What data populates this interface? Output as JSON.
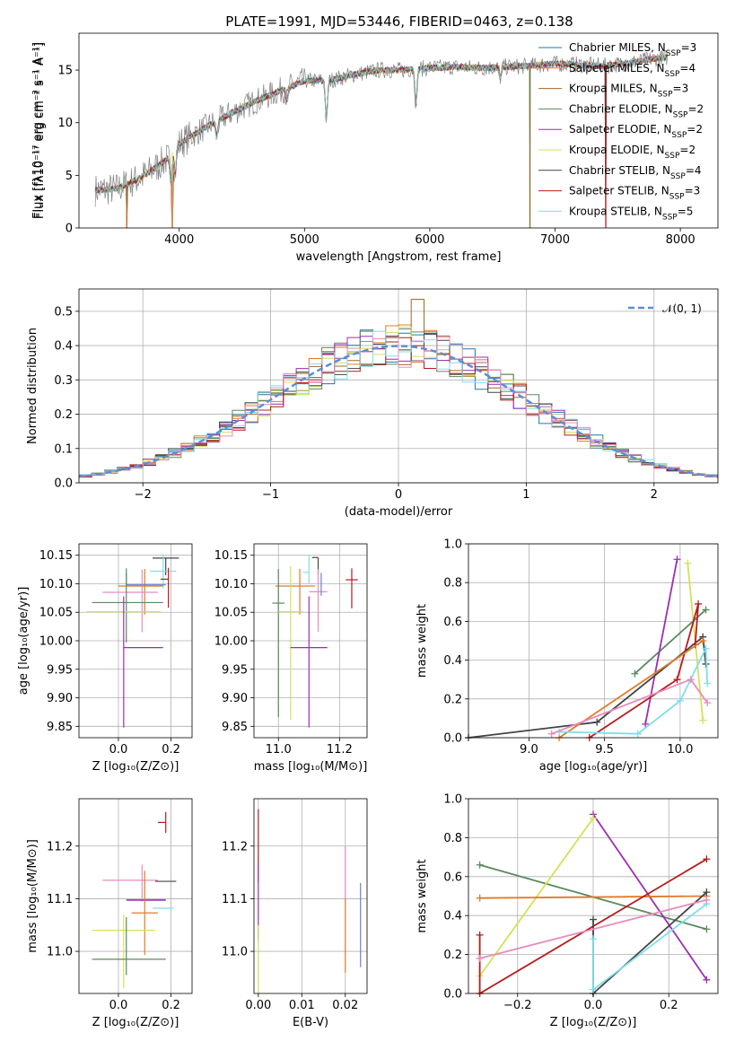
{
  "colors": [
    "#1f77b4",
    "#e07b2a",
    "#a0692a",
    "#5a8a5e",
    "#9b2fae",
    "#d4e157",
    "#444444",
    "#b71c1c",
    "#80deea",
    "#e98bbf",
    "#6b7fd0",
    "#d0e07a"
  ],
  "chart_data": [
    {
      "id": "spectrum",
      "type": "line",
      "title": "PLATE=1991, MJD=53446, FIBERID=0463, z=0.138",
      "xlabel": "wavelength [Angstrom, rest frame]",
      "ylabel": "Flux [fλ10⁻¹⁷ erg cm⁻² s⁻¹ A⁻¹]",
      "xlim": [
        3200,
        8300
      ],
      "ylim": [
        0,
        18.5
      ],
      "xticks": [
        4000,
        5000,
        6000,
        7000,
        8000
      ],
      "yticks": [
        0,
        5,
        10,
        15
      ],
      "x_range": [
        3330,
        7900
      ],
      "continuum": {
        "x": [
          3330,
          3500,
          3700,
          3900,
          4000,
          4200,
          4400,
          4600,
          4800,
          5000,
          5200,
          5400,
          5600,
          5800,
          6000,
          6200,
          6400,
          6600,
          6800,
          7000,
          7200,
          7400,
          7600,
          7800,
          7900
        ],
        "y": [
          3.6,
          3.7,
          4.8,
          6.5,
          8.0,
          9.5,
          10.8,
          12.0,
          13.0,
          14.0,
          14.0,
          14.6,
          15.0,
          15.0,
          15.2,
          15.3,
          15.2,
          15.3,
          15.4,
          15.6,
          15.5,
          15.4,
          15.7,
          16.1,
          16.2
        ]
      },
      "dips": [
        {
          "x": 3933,
          "d": 2.5
        },
        {
          "x": 3968,
          "d": 2.2
        },
        {
          "x": 4300,
          "d": 1.5
        },
        {
          "x": 4861,
          "d": 1.2
        },
        {
          "x": 5175,
          "d": 3.8
        },
        {
          "x": 5890,
          "d": 3.3
        },
        {
          "x": 6563,
          "d": 1.0
        }
      ],
      "gaps": [
        3580,
        3945,
        6800,
        7405
      ],
      "series": [
        {
          "name": "Chabrier MILES, N$_{SSP}$=3"
        },
        {
          "name": "Salpeter MILES, N$_{SSP}$=4"
        },
        {
          "name": "Kroupa MILES, N$_{SSP}$=3"
        },
        {
          "name": "Chabrier ELODIE, N$_{SSP}$=2"
        },
        {
          "name": "Salpeter ELODIE, N$_{SSP}$=2"
        },
        {
          "name": "Kroupa ELODIE, N$_{SSP}$=2"
        },
        {
          "name": "Chabrier STELIB, N$_{SSP}$=4"
        },
        {
          "name": "Salpeter STELIB, N$_{SSP}$=3"
        },
        {
          "name": "Kroupa STELIB, N$_{SSP}$=5"
        }
      ],
      "legend": "top-right",
      "grid": false
    },
    {
      "id": "residuals",
      "type": "histogram",
      "xlabel": "(data-model)/error",
      "ylabel": "Normed distribution",
      "xlim": [
        -2.5,
        2.5
      ],
      "ylim": [
        0,
        0.565
      ],
      "xticks": [
        -2,
        -1,
        0,
        1,
        2
      ],
      "yticks": [
        0.0,
        0.1,
        0.2,
        0.3,
        0.4,
        0.5
      ],
      "bin_width": 0.1,
      "reference_curve": "𝒩(0, 1)",
      "legend": "top-right",
      "grid": true
    },
    {
      "id": "age_vs_Z",
      "type": "errorbar",
      "xlabel": "Z [log₁₀(Z/Z⊙)]",
      "ylabel": "age  [log₁₀(age/yr)]",
      "xlim": [
        -0.15,
        0.28
      ],
      "ylim": [
        9.83,
        10.17
      ],
      "xticks": [
        0.0,
        0.2
      ],
      "yticks": [
        9.85,
        9.9,
        9.95,
        10.0,
        10.05,
        10.1,
        10.15
      ],
      "points": [
        {
          "x": 0.1,
          "y": 10.096,
          "xerr": [
            0.1,
            0.07
          ],
          "yerr": [
            0.05,
            0.03
          ],
          "c": 1
        },
        {
          "x": 0.18,
          "y": 10.145,
          "xerr": [
            0.05,
            0.05
          ],
          "yerr": [
            0.03,
            0.0
          ],
          "c": 6
        },
        {
          "x": 0.17,
          "y": 10.122,
          "xerr": [
            0.05,
            0.05
          ],
          "yerr": [
            0.03,
            0.03
          ],
          "c": 8
        },
        {
          "x": 0.09,
          "y": 10.085,
          "xerr": [
            0.15,
            0.06
          ],
          "yerr": [
            0.07,
            0.04
          ],
          "c": 9
        },
        {
          "x": 0.19,
          "y": 10.108,
          "xerr": [
            0.03,
            0.0
          ],
          "yerr": [
            0.05,
            0.02
          ],
          "c": 7
        },
        {
          "x": 0.03,
          "y": 10.098,
          "xerr": [
            0.0,
            0.15
          ],
          "yerr": [
            0.0,
            0.02
          ],
          "c": 10
        },
        {
          "x": 0.03,
          "y": 10.067,
          "xerr": [
            0.13,
            0.14
          ],
          "yerr": [
            0.07,
            0.06
          ],
          "c": 3
        },
        {
          "x": 0.02,
          "y": 10.051,
          "xerr": [
            0.14,
            0.14
          ],
          "yerr": [
            0.0,
            0.0
          ],
          "c": 5
        },
        {
          "x": 0.02,
          "y": 9.988,
          "xerr": [
            0.0,
            0.15
          ],
          "yerr": [
            0.14,
            0.09
          ],
          "c": 4
        }
      ],
      "grid": true
    },
    {
      "id": "age_vs_mass",
      "type": "errorbar",
      "xlabel": "mass [log₁₀(M/M⊙)]",
      "ylabel": "",
      "xlim": [
        10.92,
        11.29
      ],
      "ylim": [
        9.83,
        10.17
      ],
      "xticks": [
        11.0,
        11.2
      ],
      "yticks": [
        9.85,
        9.9,
        9.95,
        10.0,
        10.05,
        10.1,
        10.15
      ],
      "points": [
        {
          "x": 11.07,
          "y": 10.096,
          "xerr": [
            0.08,
            0.05
          ],
          "yerr": [
            0.05,
            0.03
          ],
          "c": 1
        },
        {
          "x": 11.13,
          "y": 10.146,
          "xerr": [
            0.02,
            0.0
          ],
          "yerr": [
            0.03,
            0.0
          ],
          "c": 6
        },
        {
          "x": 11.1,
          "y": 10.12,
          "xerr": [
            0.02,
            0.0
          ],
          "yerr": [
            0.02,
            0.03
          ],
          "c": 8
        },
        {
          "x": 11.13,
          "y": 10.086,
          "xerr": [
            0.03,
            0.03
          ],
          "yerr": [
            0.07,
            0.04
          ],
          "c": 9
        },
        {
          "x": 11.24,
          "y": 10.107,
          "xerr": [
            0.02,
            0.02
          ],
          "yerr": [
            0.05,
            0.02
          ],
          "c": 7
        },
        {
          "x": 11.14,
          "y": 10.099,
          "xerr": [
            0.0,
            0.0
          ],
          "yerr": [
            0.02,
            0.02
          ],
          "c": 10
        },
        {
          "x": 11.0,
          "y": 10.066,
          "xerr": [
            0.02,
            0.02
          ],
          "yerr": [
            0.2,
            0.06
          ],
          "c": 3
        },
        {
          "x": 11.04,
          "y": 10.051,
          "xerr": [
            0.04,
            0.04
          ],
          "yerr": [
            0.19,
            0.08
          ],
          "c": 5
        },
        {
          "x": 11.1,
          "y": 9.988,
          "xerr": [
            0.06,
            0.06
          ],
          "yerr": [
            0.14,
            0.09
          ],
          "c": 4
        }
      ],
      "grid": true
    },
    {
      "id": "mass_weight_vs_age",
      "type": "line",
      "xlabel": "age  [log₁₀(age/yr)]",
      "ylabel": "mass weight",
      "xlim": [
        8.6,
        10.25
      ],
      "ylim": [
        0.0,
        1.0
      ],
      "xticks": [
        9.0,
        9.5,
        10.0
      ],
      "yticks": [
        0.0,
        0.2,
        0.4,
        0.6,
        0.8,
        1.0
      ],
      "series": [
        {
          "c": 3,
          "x": [
            9.7,
            10.17
          ],
          "y": [
            0.33,
            0.66
          ]
        },
        {
          "c": 4,
          "x": [
            9.77,
            9.98
          ],
          "y": [
            0.07,
            0.92
          ]
        },
        {
          "c": 5,
          "x": [
            10.05,
            10.15
          ],
          "y": [
            0.9,
            0.09
          ]
        },
        {
          "c": 6,
          "x": [
            8.6,
            9.45,
            10.15,
            10.17
          ],
          "y": [
            0.0,
            0.08,
            0.52,
            0.38
          ]
        },
        {
          "c": 7,
          "x": [
            9.4,
            9.98,
            10.12,
            10.1
          ],
          "y": [
            0.0,
            0.3,
            0.69,
            0.48
          ]
        },
        {
          "c": 1,
          "x": [
            9.2,
            10.15
          ],
          "y": [
            0.0,
            0.5
          ]
        },
        {
          "c": 8,
          "x": [
            9.2,
            9.72,
            10.0,
            10.17,
            10.18
          ],
          "y": [
            0.03,
            0.02,
            0.19,
            0.46,
            0.28
          ]
        },
        {
          "c": 9,
          "x": [
            9.15,
            10.07,
            10.18
          ],
          "y": [
            0.02,
            0.3,
            0.18
          ]
        }
      ],
      "grid": true
    },
    {
      "id": "mass_vs_Z",
      "type": "errorbar",
      "xlabel": "Z [log₁₀(Z/Z⊙)]",
      "ylabel": "mass [log₁₀(M/M⊙)]",
      "xlim": [
        -0.15,
        0.28
      ],
      "ylim": [
        10.92,
        11.29
      ],
      "xticks": [
        0.0,
        0.2
      ],
      "yticks": [
        11.0,
        11.1,
        11.2
      ],
      "points": [
        {
          "x": 0.18,
          "y": 11.245,
          "xerr": [
            0.03,
            0.0
          ],
          "yerr": [
            0.02,
            0.02
          ],
          "c": 7
        },
        {
          "x": 0.17,
          "y": 11.133,
          "xerr": [
            0.03,
            0.05
          ],
          "yerr": [
            0.0,
            0.0
          ],
          "c": 6
        },
        {
          "x": 0.09,
          "y": 11.135,
          "xerr": [
            0.15,
            0.06
          ],
          "yerr": [
            0.04,
            0.03
          ],
          "c": 9
        },
        {
          "x": 0.03,
          "y": 11.098,
          "xerr": [
            0.0,
            0.15
          ],
          "yerr": [
            0.0,
            0.0
          ],
          "c": 10
        },
        {
          "x": 0.03,
          "y": 11.097,
          "xerr": [
            0.0,
            0.15
          ],
          "yerr": [
            0.0,
            0.0
          ],
          "c": 4
        },
        {
          "x": 0.17,
          "y": 11.082,
          "xerr": [
            0.04,
            0.04
          ],
          "yerr": [
            0.0,
            0.0
          ],
          "c": 8
        },
        {
          "x": 0.1,
          "y": 11.073,
          "xerr": [
            0.05,
            0.05
          ],
          "yerr": [
            0.08,
            0.08
          ],
          "c": 1
        },
        {
          "x": 0.02,
          "y": 11.04,
          "xerr": [
            0.12,
            0.12
          ],
          "yerr": [
            0.11,
            0.03
          ],
          "c": 5
        },
        {
          "x": 0.03,
          "y": 10.985,
          "xerr": [
            0.13,
            0.15
          ],
          "yerr": [
            0.03,
            0.08
          ],
          "c": 3
        }
      ],
      "grid": true
    },
    {
      "id": "mass_vs_ebv",
      "type": "errorbar",
      "xlabel": "E(B-V)",
      "ylabel": "",
      "xlim": [
        -0.001,
        0.025
      ],
      "ylim": [
        10.92,
        11.29
      ],
      "xticks": [
        0.0,
        0.01,
        0.02
      ],
      "xticklabels": [
        "0.00",
        "0.01",
        "0.02"
      ],
      "yticks": [
        11.0,
        11.1,
        11.2
      ],
      "points": [
        {
          "x": 0.0,
          "y": 11.2,
          "xerr": [
            0,
            0
          ],
          "yerr": [
            0.07,
            0.07
          ],
          "c": 7
        },
        {
          "x": 0.0,
          "y": 11.09,
          "xerr": [
            0,
            0
          ],
          "yerr": [
            0.07,
            0.08
          ],
          "c": 4
        },
        {
          "x": 0.0,
          "y": 11.0,
          "xerr": [
            0,
            0
          ],
          "yerr": [
            0.08,
            0.05
          ],
          "c": 5
        },
        {
          "x": 0.02,
          "y": 11.14,
          "xerr": [
            0,
            0
          ],
          "yerr": [
            0.04,
            0.06
          ],
          "c": 9
        },
        {
          "x": 0.02,
          "y": 11.03,
          "xerr": [
            0,
            0
          ],
          "yerr": [
            0.07,
            0.07
          ],
          "c": 1
        },
        {
          "x": 0.0235,
          "y": 11.05,
          "xerr": [
            0,
            0
          ],
          "yerr": [
            0.08,
            0.08
          ],
          "c": 10
        }
      ],
      "grid": true
    },
    {
      "id": "mass_weight_vs_Z",
      "type": "line",
      "xlabel": "Z [log₁₀(Z/Z⊙)]",
      "ylabel": "mass weight",
      "xlim": [
        -0.33,
        0.33
      ],
      "ylim": [
        0.0,
        1.0
      ],
      "xticks": [
        -0.2,
        0.0,
        0.2
      ],
      "xticklabels": [
        "−0.2",
        "0.0",
        "0.2"
      ],
      "yticks": [
        0.0,
        0.2,
        0.4,
        0.6,
        0.8,
        1.0
      ],
      "series": [
        {
          "c": 3,
          "x": [
            -0.3,
            0.3
          ],
          "y": [
            0.66,
            0.33
          ]
        },
        {
          "c": 4,
          "x": [
            0.0,
            0.3
          ],
          "y": [
            0.92,
            0.07
          ]
        },
        {
          "c": 5,
          "x": [
            -0.3,
            0.0
          ],
          "y": [
            0.09,
            0.9
          ]
        },
        {
          "c": 1,
          "x": [
            -0.3,
            0.3
          ],
          "y": [
            0.49,
            0.5
          ]
        },
        {
          "c": 7,
          "x": [
            -0.3,
            -0.3,
            0.3
          ],
          "y": [
            0.3,
            0.0,
            0.69
          ]
        },
        {
          "c": 6,
          "x": [
            0.0,
            0.0,
            0.3
          ],
          "y": [
            0.38,
            0.0,
            0.52
          ]
        },
        {
          "c": 8,
          "x": [
            0.0,
            0.0,
            0.3
          ],
          "y": [
            0.28,
            0.02,
            0.46
          ]
        },
        {
          "c": 9,
          "x": [
            -0.3,
            0.3
          ],
          "y": [
            0.18,
            0.48
          ]
        }
      ],
      "grid": true
    }
  ]
}
